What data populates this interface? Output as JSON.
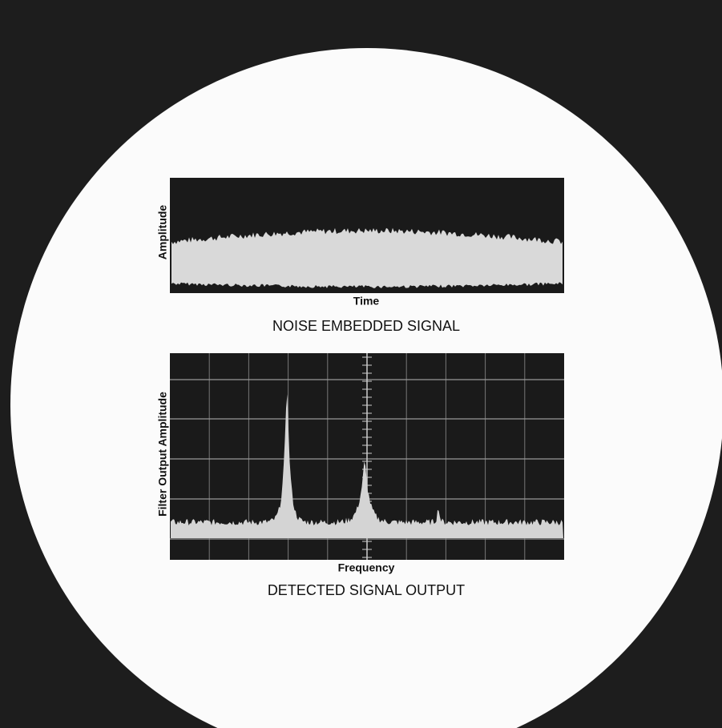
{
  "panels": [
    {
      "y_label": "Amplitude",
      "x_label": "Time",
      "caption": "NOISE EMBEDDED SIGNAL"
    },
    {
      "y_label": "Filter Output Amplitude",
      "x_label": "Frequency",
      "caption": "DETECTED SIGNAL OUTPUT"
    }
  ]
}
